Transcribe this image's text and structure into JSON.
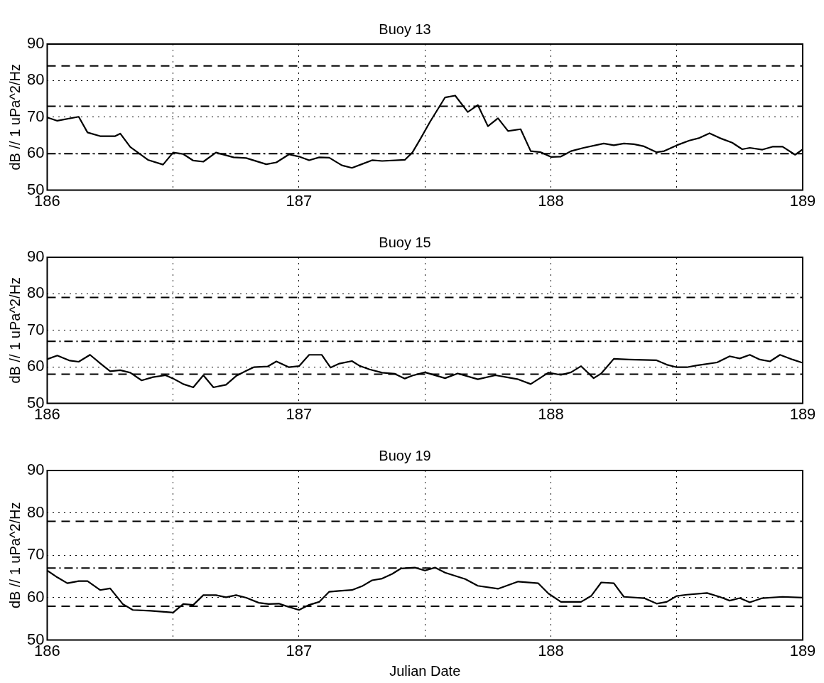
{
  "chart_data": [
    {
      "type": "line",
      "title": "Buoy 13",
      "ylabel": "dB // 1 uPa^2/Hz",
      "xlim": [
        186,
        189
      ],
      "ylim": [
        50,
        90
      ],
      "grid": true,
      "marker": "none",
      "xticks": [
        186,
        {
          "value": 186.5,
          "label": null
        },
        187,
        {
          "value": 187.5,
          "label": null
        },
        188,
        {
          "value": 188.5,
          "label": null
        },
        189
      ],
      "yticks": [
        50,
        60,
        70,
        80,
        90
      ],
      "ref_lines": [
        {
          "axis": "y",
          "value": 84,
          "line_style": "dashed",
          "color": "#000000"
        },
        {
          "axis": "y",
          "value": 73,
          "line_style": "dashdot",
          "color": "#000000"
        },
        {
          "axis": "y",
          "value": 60,
          "line_style": "dashdot",
          "color": "#000000"
        }
      ],
      "series": [
        {
          "color": "#000000",
          "line_style": "solid",
          "x": [
            186,
            186.04,
            186.125,
            186.16,
            186.21,
            186.27,
            186.29,
            186.33,
            186.4,
            186.46,
            186.5,
            186.54,
            186.58,
            186.62,
            186.67,
            186.74,
            186.79,
            186.87,
            186.91,
            186.96,
            187,
            187.04,
            187.08,
            187.12,
            187.17,
            187.21,
            187.29,
            187.33,
            187.42,
            187.45,
            187.48,
            187.52,
            187.58,
            187.62,
            187.67,
            187.71,
            187.75,
            187.79,
            187.83,
            187.88,
            187.92,
            187.96,
            188,
            188.04,
            188.08,
            188.13,
            188.21,
            188.25,
            188.29,
            188.33,
            188.37,
            188.42,
            188.45,
            188.5,
            188.55,
            188.59,
            188.63,
            188.67,
            188.72,
            188.76,
            188.79,
            188.84,
            188.88,
            188.92,
            188.97,
            189
          ],
          "values": [
            69.9,
            69,
            70.1,
            65.8,
            64.8,
            64.8,
            65.5,
            61.8,
            58.3,
            57,
            60.3,
            59.9,
            58.1,
            57.8,
            60.3,
            59,
            58.8,
            57.1,
            57.6,
            59.8,
            59.2,
            58.2,
            59,
            58.9,
            56.8,
            56.1,
            58.2,
            58,
            58.3,
            60.3,
            63.8,
            68.7,
            75.4,
            75.9,
            71.4,
            73.3,
            67.5,
            69.7,
            66.2,
            66.7,
            60.7,
            60.4,
            59.1,
            59.2,
            60.7,
            61.6,
            62.8,
            62.3,
            62.8,
            62.6,
            62,
            60.4,
            60.7,
            62.3,
            63.6,
            64.3,
            65.6,
            64.3,
            63,
            61.2,
            61.6,
            61.1,
            61.9,
            61.9,
            59.7,
            61.2
          ]
        }
      ]
    },
    {
      "type": "line",
      "title": "Buoy 15",
      "ylabel": "dB // 1 uPa^2/Hz",
      "xlim": [
        186,
        189
      ],
      "ylim": [
        50,
        90
      ],
      "grid": true,
      "marker": "none",
      "xticks": [
        186,
        {
          "value": 186.5,
          "label": null
        },
        187,
        {
          "value": 187.5,
          "label": null
        },
        188,
        {
          "value": 188.5,
          "label": null
        },
        189
      ],
      "yticks": [
        50,
        60,
        70,
        80,
        90
      ],
      "ref_lines": [
        {
          "axis": "y",
          "value": 79,
          "line_style": "dashed",
          "color": "#000000"
        },
        {
          "axis": "y",
          "value": 67,
          "line_style": "dashdot",
          "color": "#000000"
        },
        {
          "axis": "y",
          "value": 58,
          "line_style": "dashed",
          "color": "#000000"
        }
      ],
      "series": [
        {
          "color": "#000000",
          "line_style": "solid",
          "x": [
            186,
            186.04,
            186.09,
            186.125,
            186.17,
            186.21,
            186.25,
            186.29,
            186.33,
            186.375,
            186.42,
            186.47,
            186.5,
            186.54,
            186.58,
            186.62,
            186.66,
            186.71,
            186.75,
            186.79,
            186.82,
            186.875,
            186.91,
            186.96,
            187,
            187.04,
            187.09,
            187.125,
            187.16,
            187.21,
            187.24,
            187.28,
            187.33,
            187.38,
            187.42,
            187.45,
            187.5,
            187.58,
            187.63,
            187.71,
            187.78,
            187.83,
            187.87,
            187.92,
            187.99,
            188.04,
            188.08,
            188.12,
            188.17,
            188.2,
            188.25,
            188.31,
            188.42,
            188.46,
            188.5,
            188.54,
            188.58,
            188.66,
            188.71,
            188.75,
            188.79,
            188.83,
            188.87,
            188.91,
            188.96,
            189
          ],
          "values": [
            62.1,
            63.1,
            61.7,
            61.4,
            63.3,
            61,
            58.8,
            59.1,
            58.4,
            56.3,
            57.2,
            57.7,
            56.8,
            55.3,
            54.4,
            57.7,
            54.4,
            55.1,
            57.5,
            58.9,
            59.9,
            60.1,
            61.5,
            59.9,
            60.2,
            63.3,
            63.3,
            59.8,
            60.9,
            61.6,
            60.3,
            59.3,
            58.4,
            58.1,
            56.8,
            57.6,
            58.5,
            56.9,
            58.2,
            56.6,
            57.7,
            57.1,
            56.6,
            55.3,
            58.4,
            57.8,
            58.5,
            60.2,
            56.9,
            58.2,
            62.2,
            62,
            61.8,
            60.6,
            59.9,
            59.9,
            60.4,
            61.2,
            62.9,
            62.3,
            63.3,
            62,
            61.5,
            63.3,
            62,
            61.1
          ]
        }
      ]
    },
    {
      "type": "line",
      "title": "Buoy 19",
      "ylabel": "dB // 1 uPa^2/Hz",
      "xlabel": "Julian Date",
      "xlim": [
        186,
        189
      ],
      "ylim": [
        50,
        90
      ],
      "grid": true,
      "marker": "none",
      "xticks": [
        186,
        {
          "value": 186.5,
          "label": null
        },
        187,
        {
          "value": 187.5,
          "label": null
        },
        188,
        {
          "value": 188.5,
          "label": null
        },
        189
      ],
      "yticks": [
        50,
        60,
        70,
        80,
        90
      ],
      "ref_lines": [
        {
          "axis": "y",
          "value": 78,
          "line_style": "dashed",
          "color": "#000000"
        },
        {
          "axis": "y",
          "value": 67,
          "line_style": "dashdot",
          "color": "#000000"
        },
        {
          "axis": "y",
          "value": 58,
          "line_style": "dashed",
          "color": "#000000"
        }
      ],
      "series": [
        {
          "color": "#000000",
          "line_style": "solid",
          "x": [
            186,
            186.04,
            186.08,
            186.125,
            186.16,
            186.21,
            186.25,
            186.3,
            186.34,
            186.41,
            186.5,
            186.54,
            186.58,
            186.62,
            186.67,
            186.71,
            186.75,
            186.79,
            186.84,
            186.88,
            186.92,
            186.95,
            187,
            187.04,
            187.08,
            187.12,
            187.16,
            187.21,
            187.25,
            187.29,
            187.33,
            187.37,
            187.405,
            187.46,
            187.5,
            187.54,
            187.58,
            187.66,
            187.71,
            187.79,
            187.87,
            187.95,
            187.99,
            188.04,
            188.12,
            188.16,
            188.2,
            188.25,
            188.29,
            188.37,
            188.42,
            188.46,
            188.5,
            188.54,
            188.62,
            188.67,
            188.71,
            188.75,
            188.79,
            188.84,
            188.92,
            189
          ],
          "values": [
            66.4,
            64.8,
            63.4,
            63.9,
            63.9,
            61.8,
            62.2,
            58.5,
            57.1,
            56.9,
            56.5,
            58.5,
            58.3,
            60.6,
            60.6,
            60.1,
            60.6,
            60,
            58.8,
            58.5,
            58.6,
            58,
            57.1,
            58.3,
            59,
            61.4,
            61.6,
            61.8,
            62.7,
            64.1,
            64.5,
            65.6,
            66.9,
            67.1,
            66.4,
            67.1,
            65.9,
            64.4,
            62.8,
            62.1,
            63.8,
            63.4,
            61,
            59,
            59,
            60.4,
            63.6,
            63.4,
            60.2,
            59.9,
            58.6,
            59,
            60.4,
            60.7,
            61.1,
            60.2,
            59.3,
            59.9,
            58.9,
            59.9,
            60.2,
            60
          ]
        }
      ]
    }
  ]
}
